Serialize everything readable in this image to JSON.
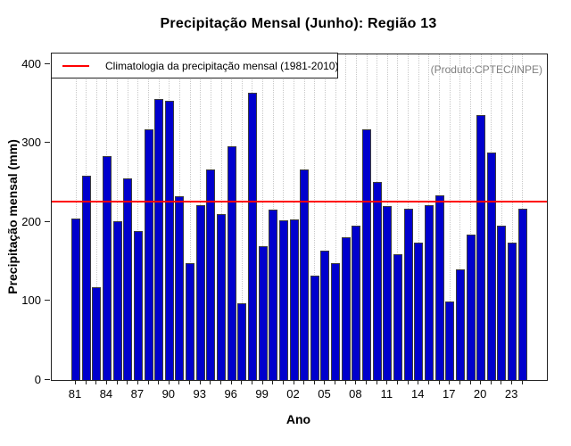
{
  "title": "Precipitação Mensal (Junho): Região 13",
  "legend": {
    "label": "Climatologia da precipitação mensal (1981-2010)",
    "line_color": "#ff0000"
  },
  "watermark": "(Produto:CPTEC/INPE)",
  "colors": {
    "bar_fill": "#0000CD",
    "bar_border": "#3c3c3c",
    "climatology_line": "#ff0000",
    "gridline": "#c8c8c8",
    "watermark_text": "#7f7f7f"
  },
  "chart_data": {
    "type": "bar",
    "title": "Precipitação Mensal (Junho): Região 13",
    "xlabel": "Ano",
    "ylabel": "Precipitação mensal (mm)",
    "ylim": [
      0,
      412
    ],
    "yticks": [
      0,
      100,
      200,
      300,
      400
    ],
    "grid": "vertical-dotted",
    "legend_position": "topleft",
    "categories": [
      1981,
      1982,
      1983,
      1984,
      1985,
      1986,
      1987,
      1988,
      1989,
      1990,
      1991,
      1992,
      1993,
      1994,
      1995,
      1996,
      1997,
      1998,
      1999,
      2000,
      2001,
      2002,
      2003,
      2004,
      2005,
      2006,
      2007,
      2008,
      2009,
      2010,
      2011,
      2012,
      2013,
      2014,
      2015,
      2016,
      2017,
      2018,
      2019,
      2020,
      2021,
      2022,
      2023,
      2024
    ],
    "values": [
      204,
      259,
      117,
      284,
      201,
      255,
      189,
      317,
      356,
      354,
      233,
      148,
      221,
      267,
      210,
      296,
      97,
      364,
      169,
      216,
      202,
      203,
      267,
      132,
      164,
      148,
      181,
      195,
      317,
      251,
      220,
      159,
      217,
      174,
      221,
      234,
      99,
      140,
      184,
      336,
      288,
      196,
      174,
      217
    ],
    "x_tick_labels": [
      "81",
      "84",
      "87",
      "90",
      "93",
      "96",
      "99",
      "02",
      "05",
      "08",
      "11",
      "14",
      "17",
      "20",
      "23"
    ],
    "x_label_every": 3,
    "climatology_value": 227.3
  }
}
